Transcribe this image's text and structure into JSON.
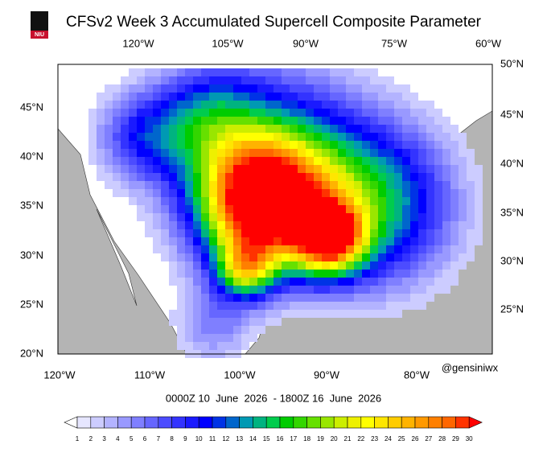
{
  "header": {
    "title": "CFSv2 Week 3 Accumulated Supercell Composite Parameter",
    "logo": "NIU"
  },
  "map": {
    "top_lon_labels": [
      "120°W",
      "105°W",
      "90°W",
      "75°W",
      "60°W"
    ],
    "bottom_lon_labels": [
      "120°W",
      "110°W",
      "100°W",
      "90°W",
      "80°W"
    ],
    "left_lat_labels": [
      "45°N",
      "40°N",
      "35°N",
      "30°N",
      "25°N",
      "20°N"
    ],
    "right_lat_labels": [
      "50°N",
      "45°N",
      "40°N",
      "35°N",
      "30°N",
      "25°N"
    ],
    "credit": "@gensiniwx"
  },
  "time_range": "0000Z 10  June  2026  - 1800Z 16  June  2026",
  "colorbar": {
    "labels": [
      "1",
      "2",
      "3",
      "4",
      "5",
      "6",
      "7",
      "8",
      "9",
      "10",
      "11",
      "12",
      "13",
      "14",
      "15",
      "16",
      "17",
      "18",
      "19",
      "20",
      "21",
      "22",
      "23",
      "24",
      "25",
      "26",
      "27",
      "28",
      "29",
      "30"
    ],
    "colors": [
      "#ffffff",
      "#e6e6ff",
      "#ccccff",
      "#b3b3ff",
      "#9999ff",
      "#7f7fff",
      "#6666ff",
      "#4c4cff",
      "#3333ff",
      "#1a1aff",
      "#0000ff",
      "#0033e6",
      "#0066cc",
      "#0099b3",
      "#00b380",
      "#00cc4d",
      "#00cc00",
      "#33d600",
      "#66e000",
      "#99e600",
      "#ccee00",
      "#eef000",
      "#ffff00",
      "#ffe600",
      "#ffcc00",
      "#ffb300",
      "#ff9900",
      "#ff7f00",
      "#ff6600",
      "#ff3300",
      "#ff0000"
    ]
  }
}
